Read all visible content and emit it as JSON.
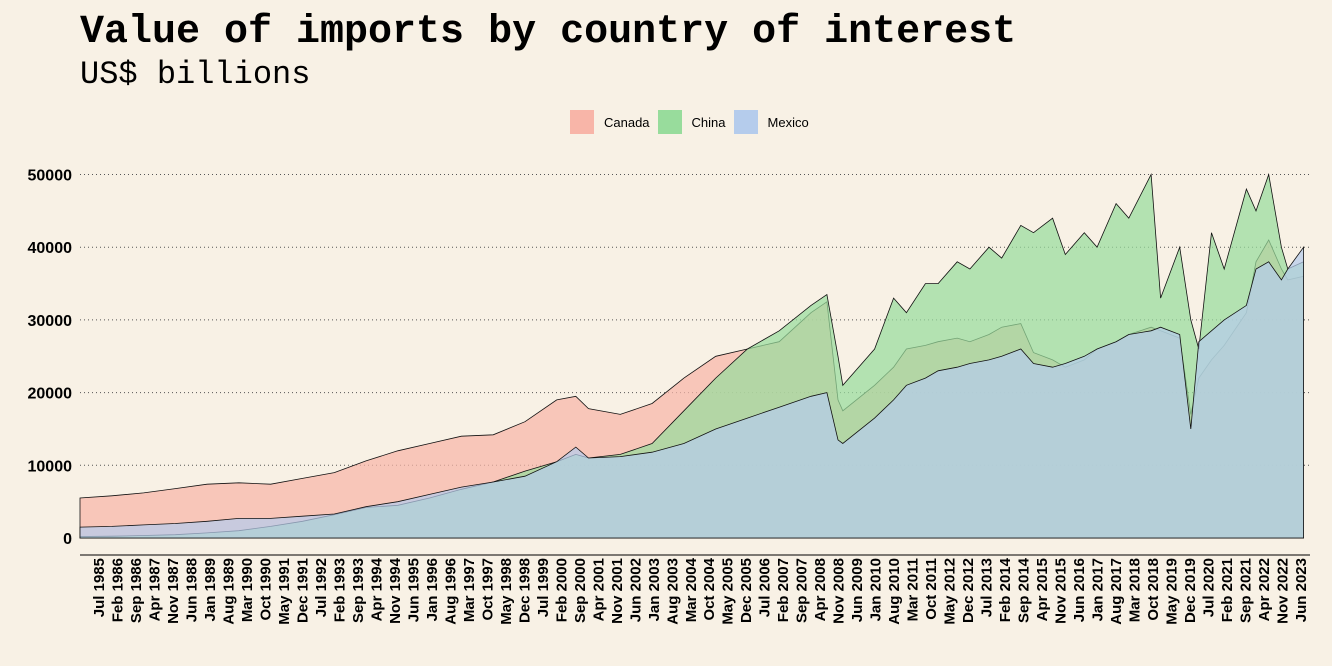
{
  "chart_data": {
    "type": "area",
    "title": "Value of imports by country of interest",
    "subtitle": "US$ billions",
    "legend_position": "top",
    "grid": "horizontal dotted",
    "ylim": [
      0,
      52000
    ],
    "y_ticks": [
      "0",
      "10000",
      "20000",
      "30000",
      "40000",
      "50000"
    ],
    "x_tick_labels": [
      "Jul 1985",
      "Feb 1986",
      "Sep 1986",
      "Apr 1987",
      "Nov 1987",
      "Jun 1988",
      "Jan 1989",
      "Aug 1989",
      "Mar 1990",
      "Oct 1990",
      "May 1991",
      "Dec 1991",
      "Jul 1992",
      "Feb 1993",
      "Sep 1993",
      "Apr 1994",
      "Nov 1994",
      "Jun 1995",
      "Jan 1996",
      "Aug 1996",
      "Mar 1997",
      "Oct 1997",
      "May 1998",
      "Dec 1998",
      "Jul 1999",
      "Feb 2000",
      "Sep 2000",
      "Apr 2001",
      "Nov 2001",
      "Jun 2002",
      "Jan 2003",
      "Aug 2003",
      "Mar 2004",
      "Oct 2004",
      "May 2005",
      "Dec 2005",
      "Jul 2006",
      "Feb 2007",
      "Sep 2007",
      "Apr 2008",
      "Nov 2008",
      "Jun 2009",
      "Jan 2010",
      "Aug 2010",
      "Mar 2011",
      "Oct 2011",
      "May 2012",
      "Dec 2012",
      "Jul 2013",
      "Feb 2014",
      "Sep 2014",
      "Apr 2015",
      "Nov 2015",
      "Jun 2016",
      "Jan 2017",
      "Aug 2017",
      "Mar 2018",
      "Oct 2018",
      "May 2019",
      "Dec 2019",
      "Jul 2020",
      "Feb 2021",
      "Sep 2021",
      "Apr 2022",
      "Nov 2022",
      "Jun 2023"
    ],
    "x": [
      1985.0,
      1986.0,
      1987.0,
      1988.0,
      1989.0,
      1990.0,
      1991.0,
      1992.0,
      1993.0,
      1994.0,
      1995.0,
      1996.0,
      1997.0,
      1998.0,
      1999.0,
      2000.0,
      2000.6,
      2001.0,
      2002.0,
      2003.0,
      2004.0,
      2005.0,
      2006.0,
      2007.0,
      2008.0,
      2008.5,
      2008.85,
      2009.0,
      2010.0,
      2010.6,
      2011.0,
      2011.6,
      2012.0,
      2012.6,
      2013.0,
      2013.6,
      2014.0,
      2014.6,
      2015.0,
      2015.6,
      2016.0,
      2016.6,
      2017.0,
      2017.6,
      2018.0,
      2018.7,
      2019.0,
      2019.6,
      2019.95,
      2020.2,
      2020.6,
      2021.0,
      2021.7,
      2022.0,
      2022.4,
      2022.8,
      2023.0,
      2023.5
    ],
    "series": [
      {
        "name": "Canada",
        "color": "#f8b5a8",
        "values": [
          5500,
          5800,
          6200,
          6800,
          7400,
          7600,
          7400,
          8200,
          9000,
          10600,
          12000,
          13000,
          14000,
          14200,
          16000,
          19000,
          19500,
          17800,
          17000,
          18500,
          22000,
          25000,
          26000,
          27000,
          31000,
          32500,
          19000,
          17500,
          21000,
          23500,
          26000,
          26500,
          27000,
          27500,
          27000,
          28000,
          29000,
          29500,
          25500,
          24500,
          23500,
          24500,
          26000,
          27000,
          28000,
          29000,
          28500,
          27500,
          17000,
          22000,
          24500,
          26500,
          31000,
          38000,
          41000,
          37000,
          35500,
          36000
        ]
      },
      {
        "name": "China",
        "color": "#98dc9c",
        "values": [
          200,
          250,
          350,
          450,
          700,
          1000,
          1600,
          2300,
          3200,
          4200,
          4500,
          5500,
          6700,
          7700,
          9200,
          10500,
          11500,
          11000,
          11500,
          13000,
          17500,
          22000,
          26000,
          28500,
          32000,
          33500,
          25000,
          21000,
          26000,
          33000,
          31000,
          35000,
          35000,
          38000,
          37000,
          40000,
          38500,
          43000,
          42000,
          44000,
          39000,
          42000,
          40000,
          46000,
          44000,
          50000,
          33000,
          40000,
          30000,
          26000,
          42000,
          37000,
          48000,
          45000,
          50000,
          40000,
          37000,
          38000
        ]
      },
      {
        "name": "Mexico",
        "color": "#b5ccec",
        "values": [
          1500,
          1600,
          1800,
          2000,
          2300,
          2700,
          2700,
          3000,
          3300,
          4300,
          5000,
          6000,
          7000,
          7700,
          8500,
          10500,
          12500,
          11000,
          11200,
          11800,
          13000,
          15000,
          16500,
          18000,
          19500,
          20000,
          13500,
          13000,
          16500,
          19000,
          21000,
          22000,
          23000,
          23500,
          24000,
          24500,
          25000,
          26000,
          24000,
          23500,
          24000,
          25000,
          26000,
          27000,
          28000,
          28500,
          29000,
          28000,
          15000,
          27000,
          28500,
          30000,
          32000,
          37000,
          38000,
          35500,
          37000,
          40000
        ]
      }
    ]
  }
}
